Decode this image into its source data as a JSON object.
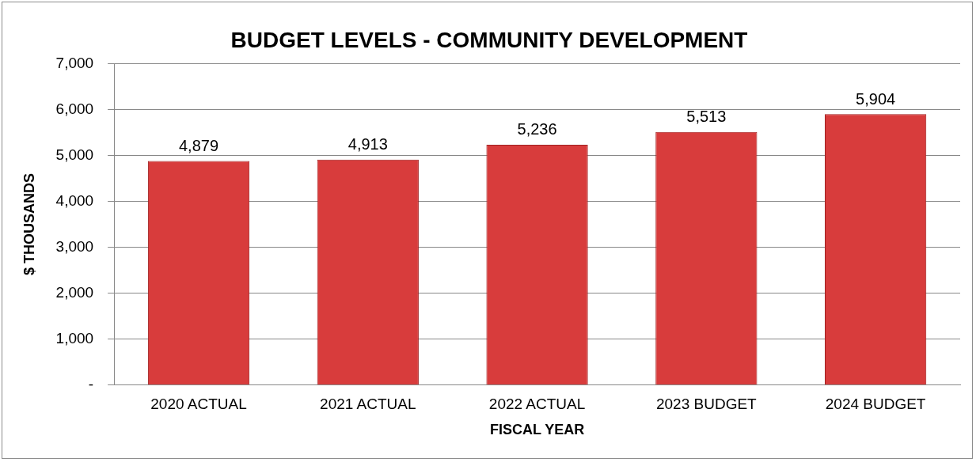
{
  "chart_data": {
    "type": "bar",
    "title": "BUDGET LEVELS - COMMUNITY DEVELOPMENT",
    "xlabel": "FISCAL YEAR",
    "ylabel": "$ THOUSANDS",
    "categories": [
      "2020 ACTUAL",
      "2021 ACTUAL",
      "2022 ACTUAL",
      "2023 BUDGET",
      "2024 BUDGET"
    ],
    "values": [
      4879,
      4913,
      5236,
      5513,
      5904
    ],
    "color": "#d83c3c",
    "value_labels": [
      "4,879",
      "4,913",
      "5,236",
      "5,513",
      "5,904"
    ],
    "ylim": [
      0,
      7000
    ],
    "yticks": [
      {
        "value": 0,
        "label": "-"
      },
      {
        "value": 1000,
        "label": "1,000"
      },
      {
        "value": 2000,
        "label": "2,000"
      },
      {
        "value": 3000,
        "label": "3,000"
      },
      {
        "value": 4000,
        "label": "4,000"
      },
      {
        "value": 5000,
        "label": "5,000"
      },
      {
        "value": 6000,
        "label": "6,000"
      },
      {
        "value": 7000,
        "label": "7,000"
      }
    ],
    "grid": "y",
    "legend": false
  }
}
